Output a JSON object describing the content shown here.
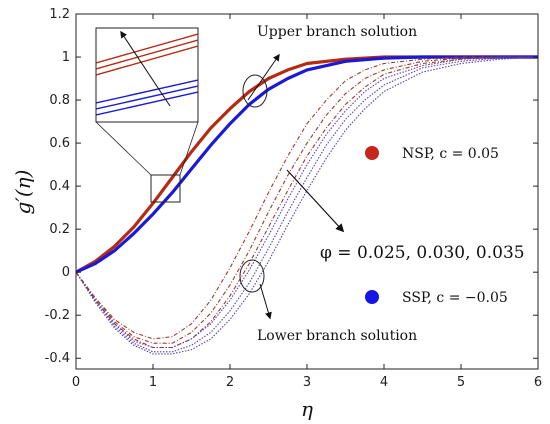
{
  "chart_data": {
    "type": "line",
    "xlabel": "η",
    "ylabel": "g′(η)",
    "xlim": [
      0,
      6
    ],
    "ylim": [
      -0.45,
      1.2
    ],
    "xticks": [
      "0",
      "1",
      "2",
      "3",
      "4",
      "5",
      "6"
    ],
    "yticks": [
      "-0.4",
      "-0.2",
      "0",
      "0.2",
      "0.4",
      "0.6",
      "0.8",
      "1",
      "1.2"
    ],
    "grid": false,
    "colors": {
      "nsp": "#b52a12",
      "ssp": "#1a1ad6",
      "nsp_lower": "#9a3a2a",
      "ssp_lower": "#5a3fb0"
    },
    "legend": {
      "nsp": "NSP, c = 0.05",
      "ssp": "SSP, c = −0.05"
    },
    "annotations": {
      "upper": "Upper branch solution",
      "lower": "Lower branch solution",
      "phi": "φ = 0.025, 0.030, 0.035"
    },
    "series": [
      {
        "branch": "upper",
        "group": "NSP",
        "x": [
          0,
          0.25,
          0.5,
          0.75,
          1,
          1.25,
          1.5,
          1.75,
          2,
          2.25,
          2.5,
          2.75,
          3,
          3.5,
          4,
          4.5,
          5,
          5.5,
          6
        ],
        "y": [
          0,
          0.05,
          0.12,
          0.21,
          0.32,
          0.44,
          0.56,
          0.67,
          0.76,
          0.84,
          0.9,
          0.94,
          0.97,
          0.99,
          1,
          1,
          1,
          1,
          1
        ]
      },
      {
        "branch": "upper",
        "group": "SSP",
        "x": [
          0,
          0.25,
          0.5,
          0.75,
          1,
          1.25,
          1.5,
          1.75,
          2,
          2.25,
          2.5,
          2.75,
          3,
          3.5,
          4,
          4.5,
          5,
          5.5,
          6
        ],
        "y": [
          0,
          0.04,
          0.1,
          0.18,
          0.27,
          0.37,
          0.48,
          0.59,
          0.69,
          0.78,
          0.85,
          0.9,
          0.94,
          0.98,
          0.995,
          1,
          1,
          1,
          1
        ]
      },
      {
        "branch": "lower",
        "group": "NSP",
        "x": [
          0,
          0.25,
          0.5,
          0.75,
          1,
          1.25,
          1.5,
          1.75,
          2,
          2.25,
          2.5,
          2.75,
          3,
          3.25,
          3.5,
          3.75,
          4,
          4.5,
          5,
          5.5,
          6
        ],
        "y": [
          0,
          -0.12,
          -0.22,
          -0.28,
          -0.31,
          -0.3,
          -0.24,
          -0.13,
          0.02,
          0.19,
          0.37,
          0.54,
          0.69,
          0.8,
          0.89,
          0.94,
          0.97,
          0.99,
          1,
          1,
          1
        ]
      },
      {
        "branch": "lower",
        "group": "NSP",
        "x": [
          0,
          0.25,
          0.5,
          0.75,
          1,
          1.25,
          1.5,
          1.75,
          2,
          2.25,
          2.5,
          2.75,
          3,
          3.25,
          3.5,
          3.75,
          4,
          4.5,
          5,
          5.5,
          6
        ],
        "y": [
          0,
          -0.12,
          -0.23,
          -0.3,
          -0.33,
          -0.33,
          -0.28,
          -0.19,
          -0.06,
          0.1,
          0.28,
          0.45,
          0.6,
          0.73,
          0.83,
          0.9,
          0.94,
          0.98,
          0.995,
          1,
          1
        ]
      },
      {
        "branch": "lower",
        "group": "NSP",
        "x": [
          0,
          0.25,
          0.5,
          0.75,
          1,
          1.25,
          1.5,
          1.75,
          2,
          2.25,
          2.5,
          2.75,
          3,
          3.25,
          3.5,
          3.75,
          4,
          4.5,
          5,
          5.5,
          6
        ],
        "y": [
          0,
          -0.13,
          -0.24,
          -0.31,
          -0.35,
          -0.35,
          -0.31,
          -0.23,
          -0.11,
          0.04,
          0.21,
          0.38,
          0.54,
          0.67,
          0.78,
          0.86,
          0.92,
          0.97,
          0.99,
          1,
          1
        ]
      },
      {
        "branch": "lower",
        "group": "SSP",
        "x": [
          0,
          0.25,
          0.5,
          0.75,
          1,
          1.25,
          1.5,
          1.75,
          2,
          2.25,
          2.5,
          2.75,
          3,
          3.25,
          3.5,
          3.75,
          4,
          4.5,
          5,
          5.5,
          6
        ],
        "y": [
          0,
          -0.13,
          -0.24,
          -0.32,
          -0.35,
          -0.35,
          -0.31,
          -0.24,
          -0.13,
          0.01,
          0.17,
          0.34,
          0.5,
          0.64,
          0.75,
          0.84,
          0.9,
          0.96,
          0.99,
          1,
          1
        ]
      },
      {
        "branch": "lower",
        "group": "SSP",
        "x": [
          0,
          0.25,
          0.5,
          0.75,
          1,
          1.25,
          1.5,
          1.75,
          2,
          2.25,
          2.5,
          2.75,
          3,
          3.25,
          3.5,
          3.75,
          4,
          4.5,
          5,
          5.5,
          6
        ],
        "y": [
          0,
          -0.13,
          -0.25,
          -0.33,
          -0.37,
          -0.37,
          -0.34,
          -0.28,
          -0.18,
          -0.05,
          0.11,
          0.28,
          0.44,
          0.59,
          0.71,
          0.8,
          0.87,
          0.95,
          0.98,
          0.995,
          1
        ]
      },
      {
        "branch": "lower",
        "group": "SSP",
        "x": [
          0,
          0.25,
          0.5,
          0.75,
          1,
          1.25,
          1.5,
          1.75,
          2,
          2.25,
          2.5,
          2.75,
          3,
          3.25,
          3.5,
          3.75,
          4,
          4.5,
          5,
          5.5,
          6
        ],
        "y": [
          0,
          -0.14,
          -0.26,
          -0.34,
          -0.38,
          -0.38,
          -0.36,
          -0.31,
          -0.22,
          -0.1,
          0.05,
          0.22,
          0.38,
          0.53,
          0.66,
          0.76,
          0.84,
          0.93,
          0.97,
          0.99,
          1
        ]
      }
    ]
  }
}
